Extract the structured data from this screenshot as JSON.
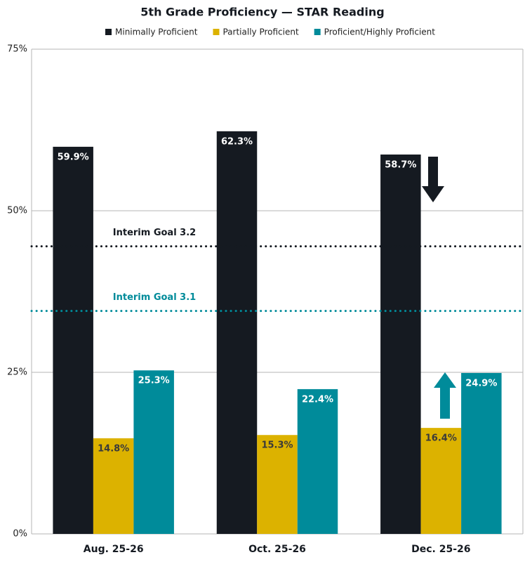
{
  "chart_data": {
    "type": "bar",
    "title": "5th Grade Proficiency — STAR Reading",
    "categories": [
      "Aug. 25-26",
      "Oct. 25-26",
      "Dec. 25-26"
    ],
    "series": [
      {
        "name": "Minimally Proficient",
        "color": "#151a21",
        "label_color": "#ffffff",
        "values": [
          59.9,
          62.3,
          58.7
        ],
        "value_labels": [
          "59.9%",
          "62.3%",
          "58.7%"
        ]
      },
      {
        "name": "Partially Proficient",
        "color": "#dcb200",
        "label_color": "#3a3a3a",
        "values": [
          14.8,
          15.3,
          16.4
        ],
        "value_labels": [
          "14.8%",
          "15.3%",
          "16.4%"
        ]
      },
      {
        "name": "Proficient/Highly Proficient",
        "color": "#008b9a",
        "label_color": "#ffffff",
        "values": [
          25.3,
          22.4,
          24.9
        ],
        "value_labels": [
          "25.3%",
          "22.4%",
          "24.9%"
        ]
      }
    ],
    "ylim": [
      0,
      75
    ],
    "yticks": [
      {
        "value": 0,
        "label": "0%"
      },
      {
        "value": 25,
        "label": "25%"
      },
      {
        "value": 50,
        "label": "50%"
      },
      {
        "value": 75,
        "label": "75%"
      }
    ],
    "grid": true,
    "reference_lines": [
      {
        "label": "Interim Goal 3.2",
        "value": 44.5,
        "color": "#151a21"
      },
      {
        "label": "Interim Goal 3.1",
        "value": 34.5,
        "color": "#008b9a"
      }
    ]
  }
}
